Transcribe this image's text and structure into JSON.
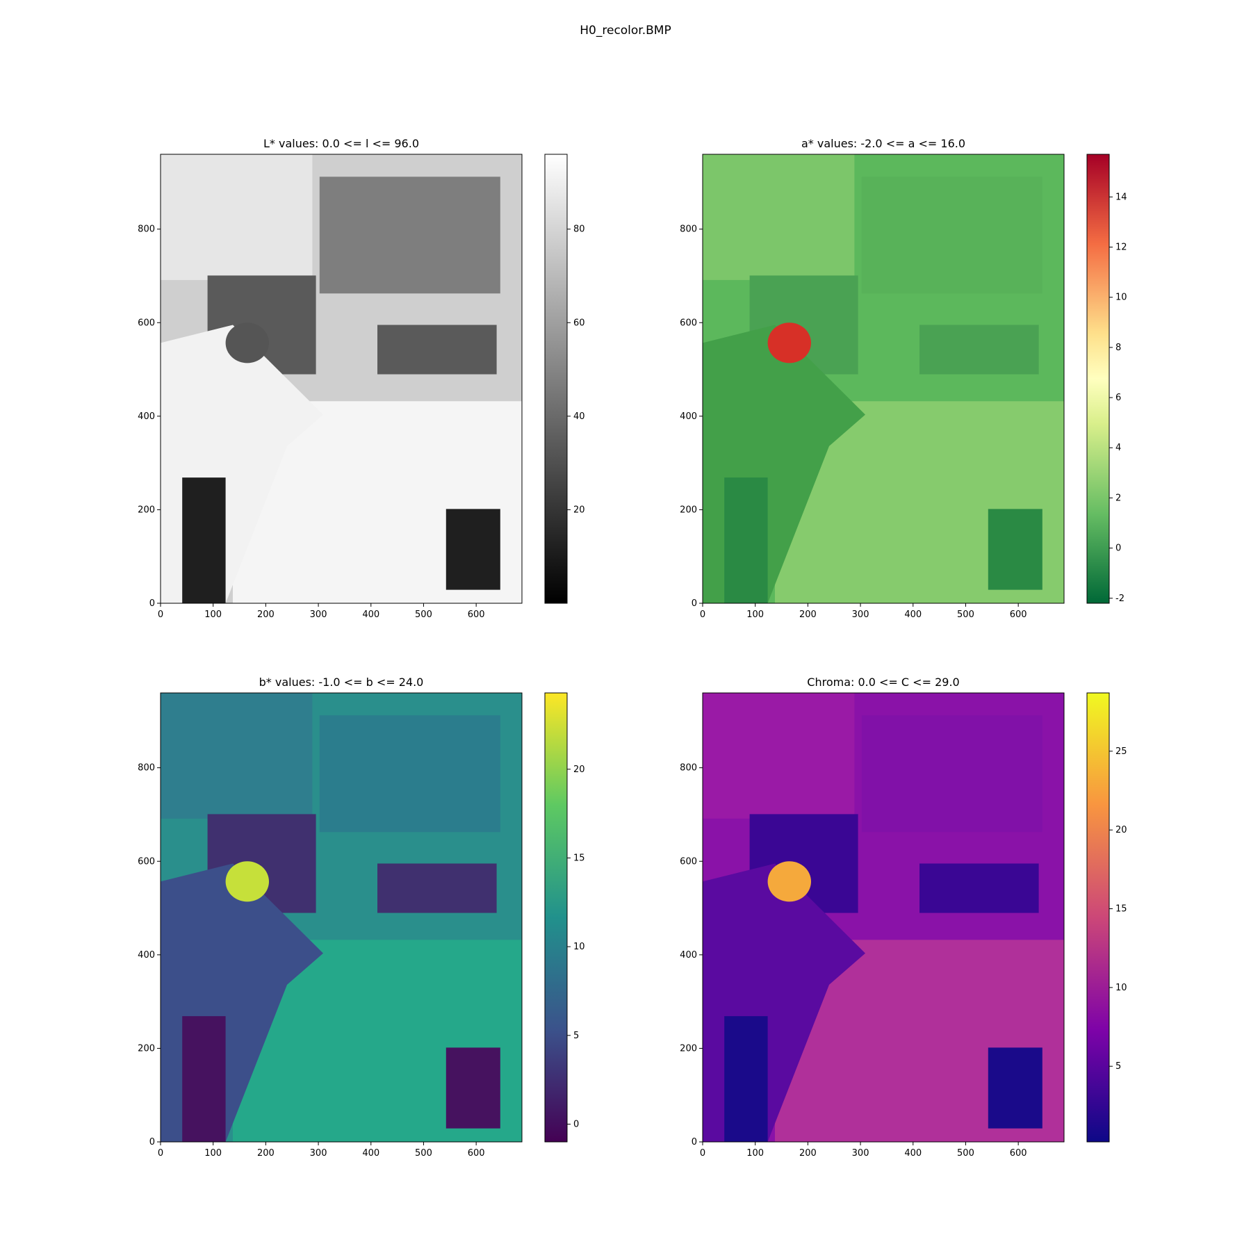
{
  "figure": {
    "suptitle": "H0_recolor.BMP"
  },
  "chart_data": [
    {
      "type": "heatmap",
      "title": "L* values: 0.0 <= l <= 96.0",
      "xlabel": "",
      "ylabel": "",
      "xlim": [
        0,
        687
      ],
      "ylim": [
        0,
        960
      ],
      "xticks": [
        0,
        100,
        200,
        300,
        400,
        500,
        600
      ],
      "yticks": [
        0,
        200,
        400,
        600,
        800
      ],
      "colormap": "gray",
      "value_range": [
        0.0,
        96.0
      ],
      "colorbar_ticks": [
        20,
        40,
        60,
        80
      ],
      "colorbar_range": [
        0,
        96
      ]
    },
    {
      "type": "heatmap",
      "title": "a* values: -2.0 <= a <= 16.0",
      "xlabel": "",
      "ylabel": "",
      "xlim": [
        0,
        687
      ],
      "ylim": [
        0,
        960
      ],
      "xticks": [
        0,
        100,
        200,
        300,
        400,
        500,
        600
      ],
      "yticks": [
        0,
        200,
        400,
        600,
        800
      ],
      "colormap": "RdYlGn_r",
      "value_range": [
        -2.0,
        16.0
      ],
      "colorbar_ticks": [
        -2,
        0,
        2,
        4,
        6,
        8,
        10,
        12,
        14
      ],
      "colorbar_range": [
        -2.2,
        15.7
      ]
    },
    {
      "type": "heatmap",
      "title": "b* values: -1.0 <= b <= 24.0",
      "xlabel": "",
      "ylabel": "",
      "xlim": [
        0,
        687
      ],
      "ylim": [
        0,
        960
      ],
      "xticks": [
        0,
        100,
        200,
        300,
        400,
        500,
        600
      ],
      "yticks": [
        0,
        200,
        400,
        600,
        800
      ],
      "colormap": "viridis",
      "value_range": [
        -1.0,
        24.0
      ],
      "colorbar_ticks": [
        0,
        5,
        10,
        15,
        20
      ],
      "colorbar_range": [
        -1.0,
        24.3
      ]
    },
    {
      "type": "heatmap",
      "title": "Chroma: 0.0 <= C <= 29.0",
      "xlabel": "",
      "ylabel": "",
      "xlim": [
        0,
        687
      ],
      "ylim": [
        0,
        960
      ],
      "xticks": [
        0,
        100,
        200,
        300,
        400,
        500,
        600
      ],
      "yticks": [
        0,
        200,
        400,
        600,
        800
      ],
      "colormap": "plasma",
      "value_range": [
        0.0,
        29.0
      ],
      "colorbar_ticks": [
        5,
        10,
        15,
        20,
        25
      ],
      "colorbar_range": [
        0.2,
        28.7
      ]
    }
  ]
}
